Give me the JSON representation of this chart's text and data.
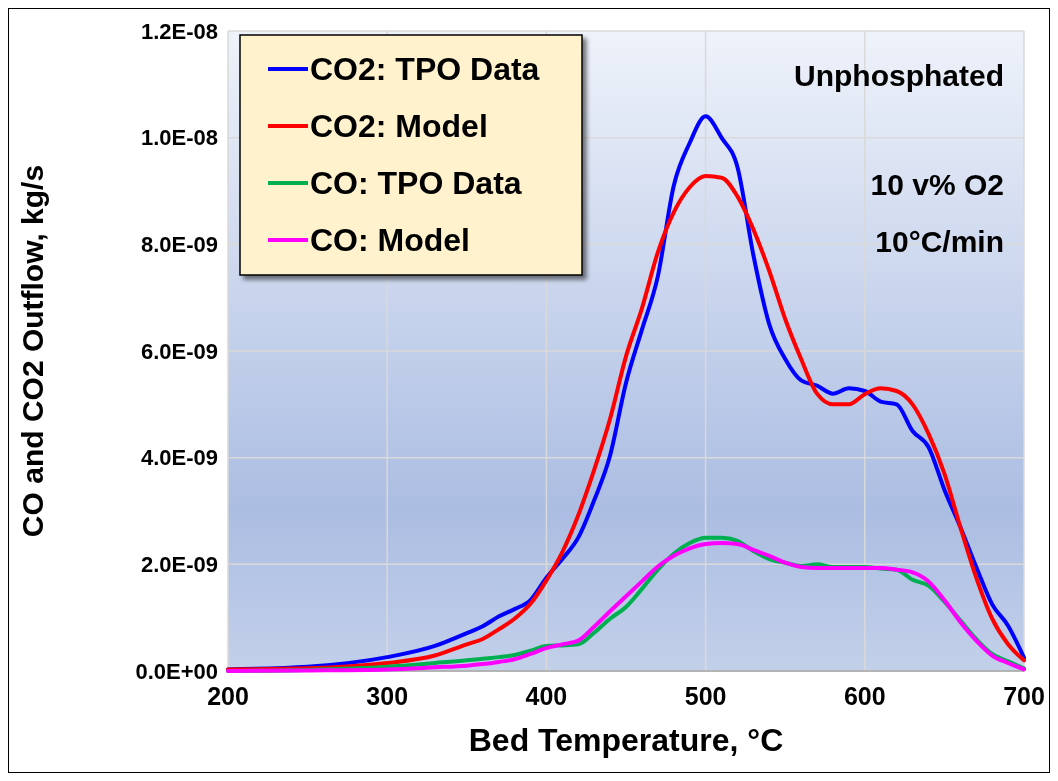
{
  "chart_data": {
    "type": "line",
    "xlabel": "Bed Temperature, °C",
    "ylabel": "CO and CO2 Outflow, kg/s",
    "x": [
      200,
      250,
      300,
      330,
      350,
      360,
      370,
      380,
      390,
      400,
      410,
      420,
      430,
      440,
      450,
      460,
      470,
      480,
      490,
      500,
      510,
      520,
      530,
      540,
      550,
      560,
      570,
      580,
      590,
      600,
      610,
      620,
      630,
      640,
      650,
      660,
      670,
      680,
      690,
      700
    ],
    "series": [
      {
        "name": "CO2: TPO Data",
        "color": "#0000ff",
        "values": [
          3e-11,
          8e-11,
          2.6e-10,
          4.7e-10,
          7.1e-10,
          8.4e-10,
          1.02e-09,
          1.16e-09,
          1.33e-09,
          1.75e-09,
          2.1e-09,
          2.5e-09,
          3.2e-09,
          4.04e-09,
          5.4e-09,
          6.4e-09,
          7.4e-09,
          9.1e-09,
          9.9e-09,
          1.04e-08,
          1e-08,
          9.45e-09,
          7.8e-09,
          6.5e-09,
          5.85e-09,
          5.45e-09,
          5.35e-09,
          5.2e-09,
          5.3e-09,
          5.25e-09,
          5.05e-09,
          5e-09,
          4.5e-09,
          4.2e-09,
          3.4e-09,
          2.7e-09,
          1.95e-09,
          1.25e-09,
          8.5e-10,
          2.5e-10
        ]
      },
      {
        "name": "CO2: Model",
        "color": "#ff0000",
        "values": [
          3e-11,
          5e-11,
          1.5e-10,
          2.9e-10,
          5e-10,
          6e-10,
          7.8e-10,
          9.8e-10,
          1.26e-09,
          1.7e-09,
          2.23e-09,
          2.92e-09,
          3.77e-09,
          4.73e-09,
          5.9e-09,
          6.8e-09,
          7.85e-09,
          8.6e-09,
          9.07e-09,
          9.28e-09,
          9.25e-09,
          8.9e-09,
          8.28e-09,
          7.5e-09,
          6.6e-09,
          5.85e-09,
          5.2e-09,
          5e-09,
          5e-09,
          5.19e-09,
          5.3e-09,
          5.25e-09,
          5e-09,
          4.45e-09,
          3.7e-09,
          2.7e-09,
          1.75e-09,
          9.8e-10,
          5e-10,
          2e-10
        ]
      },
      {
        "name": "CO: TPO Data",
        "color": "#00b050",
        "values": [
          0.0,
          2e-11,
          8e-11,
          1.5e-10,
          2e-10,
          2.3e-10,
          2.6e-10,
          3e-10,
          3.8e-10,
          4.7e-10,
          4.8e-10,
          5e-10,
          7.2e-10,
          9.8e-10,
          1.2e-09,
          1.54e-09,
          1.9e-09,
          2.2e-09,
          2.4e-09,
          2.5e-09,
          2.5e-09,
          2.44e-09,
          2.25e-09,
          2.1e-09,
          2.03e-09,
          1.97e-09,
          2e-09,
          1.95e-09,
          1.95e-09,
          1.95e-09,
          1.92e-09,
          1.9e-09,
          1.71e-09,
          1.6e-09,
          1.3e-09,
          9.5e-10,
          6e-10,
          3.2e-10,
          1.8e-10,
          5e-11
        ]
      },
      {
        "name": "CO: Model",
        "color": "#ff00ff",
        "values": [
          0.0,
          1e-11,
          3e-11,
          7e-11,
          1e-10,
          1.3e-10,
          1.7e-10,
          2.2e-10,
          3.2e-10,
          4.3e-10,
          5e-10,
          5.7e-10,
          8.3e-10,
          1.12e-09,
          1.4e-09,
          1.68e-09,
          1.96e-09,
          2.16e-09,
          2.3e-09,
          2.38e-09,
          2.4e-09,
          2.38e-09,
          2.27e-09,
          2.16e-09,
          2.03e-09,
          1.95e-09,
          1.93e-09,
          1.93e-09,
          1.93e-09,
          1.93e-09,
          1.93e-09,
          1.9e-09,
          1.85e-09,
          1.68e-09,
          1.33e-09,
          9.2e-10,
          5.7e-10,
          2.9e-10,
          1.5e-10,
          3e-11
        ]
      }
    ],
    "xlim": [
      200,
      700
    ],
    "xticks": [
      200,
      300,
      400,
      500,
      600,
      700
    ],
    "ylim": [
      0,
      1.2e-08
    ],
    "yticks": [
      {
        "value": 0,
        "label": "0.0E+00"
      },
      {
        "value": 2e-09,
        "label": "2.0E-09"
      },
      {
        "value": 4e-09,
        "label": "4.0E-09"
      },
      {
        "value": 6e-09,
        "label": "6.0E-09"
      },
      {
        "value": 8e-09,
        "label": "8.0E-09"
      },
      {
        "value": 1e-08,
        "label": "1.0E-08"
      },
      {
        "value": 1.2e-08,
        "label": "1.2E-08"
      }
    ],
    "grid": true,
    "legend": "top left",
    "marker": "none",
    "line_style": "solid",
    "annotations": [
      "Unphosphated",
      "10 v% O2",
      "10°C/min"
    ]
  }
}
